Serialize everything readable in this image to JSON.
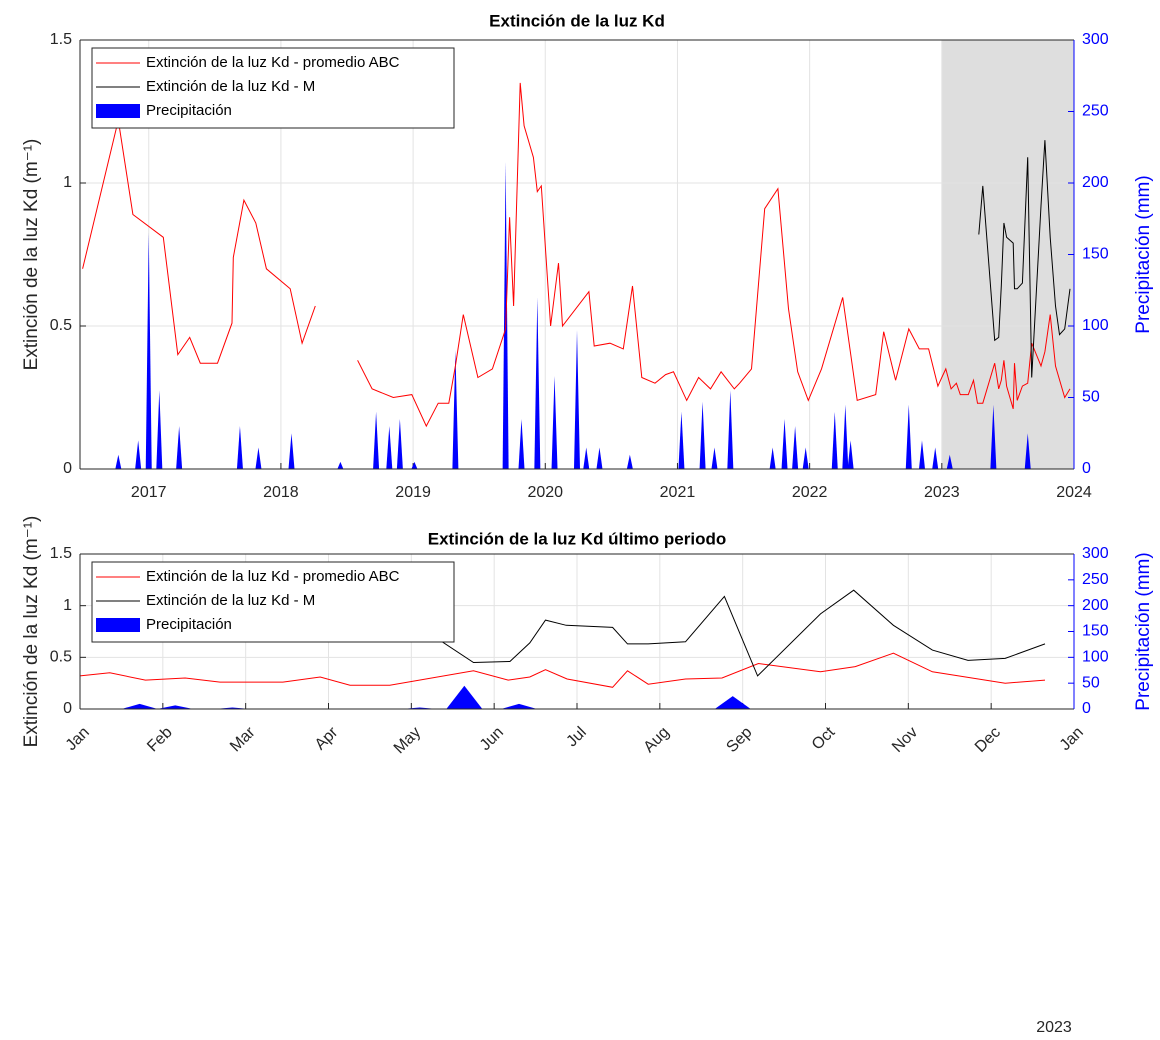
{
  "chart_data": [
    {
      "type": "line",
      "title": "Extinción de la luz Kd",
      "ylabel": "Extinción de la luz Kd (m⁻¹)",
      "y2label": "Precipitación (mm)",
      "xlim": [
        2016.48,
        2024
      ],
      "xticks": [
        2017,
        2018,
        2019,
        2020,
        2021,
        2022,
        2023,
        2024
      ],
      "ylim": [
        0,
        1.5
      ],
      "yticks": [
        0,
        0.5,
        1,
        1.5
      ],
      "y2lim": [
        0,
        300
      ],
      "y2ticks": [
        0,
        50,
        100,
        150,
        200,
        250,
        300
      ],
      "grid": true,
      "legend": "upper left",
      "highlight_x": [
        2023,
        2024
      ],
      "series": [
        {
          "name": "Extinción de la luz Kd - promedio ABC",
          "color": "#ff0000",
          "x": [
            2016.5,
            2016.77,
            2016.88,
            2017.11,
            2017.22,
            2017.31,
            2017.39,
            2017.52,
            2017.63,
            2017.64,
            2017.72,
            2017.81,
            2017.89,
            2018.07,
            2018.16,
            2018.26,
            2018.42,
            2018.58,
            2018.69,
            2018.85,
            2018.99,
            2019.1,
            2019.19,
            2019.27,
            2019.32,
            2019.38,
            2019.49,
            2019.6,
            2019.7,
            2019.73,
            2019.76,
            2019.81,
            2019.84,
            2019.91,
            2019.94,
            2019.97,
            2020.04,
            2020.1,
            2020.13,
            2020.33,
            2020.37,
            2020.49,
            2020.59,
            2020.66,
            2020.73,
            2020.83,
            2020.91,
            2020.97,
            2021.07,
            2021.16,
            2021.25,
            2021.33,
            2021.43,
            2021.47,
            2021.56,
            2021.66,
            2021.76,
            2021.84,
            2021.91,
            2021.99,
            2022.09,
            2022.25,
            2022.36,
            2022.5,
            2022.56,
            2022.65,
            2022.75,
            2022.83,
            2022.9,
            2022.97,
            2023.0,
            2023.03,
            2023.07,
            2023.11,
            2023.14,
            2023.2,
            2023.24,
            2023.27,
            2023.31,
            2023.4,
            2023.43,
            2023.45,
            2023.47,
            2023.49,
            2023.54,
            2023.55,
            2023.57,
            2023.61,
            2023.65,
            2023.68,
            2023.75,
            2023.78,
            2023.82,
            2023.86,
            2023.93,
            2023.97
          ],
          "values": [
            0.7,
            1.22,
            0.89,
            0.81,
            0.4,
            0.46,
            0.37,
            0.37,
            0.51,
            0.74,
            0.94,
            0.86,
            0.7,
            0.63,
            0.44,
            0.57,
            null,
            0.38,
            0.28,
            0.25,
            0.26,
            0.15,
            0.23,
            0.23,
            0.36,
            0.54,
            0.32,
            0.35,
            0.49,
            0.88,
            0.57,
            1.35,
            1.2,
            1.09,
            0.97,
            0.99,
            0.5,
            0.72,
            0.5,
            0.62,
            0.43,
            0.44,
            0.42,
            0.64,
            0.32,
            0.3,
            0.33,
            0.34,
            0.24,
            0.32,
            0.28,
            0.34,
            0.28,
            0.3,
            0.35,
            0.91,
            0.98,
            0.56,
            0.34,
            0.24,
            0.35,
            0.6,
            0.24,
            0.26,
            0.48,
            0.31,
            0.49,
            0.42,
            0.42,
            0.29,
            0.32,
            0.35,
            0.28,
            0.3,
            0.26,
            0.26,
            0.31,
            0.23,
            0.23,
            0.37,
            0.28,
            0.31,
            0.38,
            0.29,
            0.21,
            0.37,
            0.24,
            0.29,
            0.3,
            0.44,
            0.36,
            0.41,
            0.54,
            0.36,
            0.25,
            0.28
          ]
        },
        {
          "name": "Extinción de la luz Kd - M",
          "color": "#000000",
          "x": [
            2023.28,
            2023.31,
            2023.4,
            2023.43,
            2023.45,
            2023.47,
            2023.49,
            2023.54,
            2023.55,
            2023.57,
            2023.61,
            2023.65,
            2023.68,
            2023.75,
            2023.78,
            2023.82,
            2023.86,
            2023.89,
            2023.93,
            2023.97
          ],
          "values": [
            0.82,
            0.99,
            0.45,
            0.46,
            0.64,
            0.86,
            0.81,
            0.79,
            0.63,
            0.63,
            0.65,
            1.09,
            0.32,
            0.92,
            1.15,
            0.81,
            0.57,
            0.47,
            0.49,
            0.63
          ]
        },
        {
          "name": "Precipitación",
          "color": "#0000ff",
          "axis": "y2",
          "x": [
            2016.77,
            2016.92,
            2017.0,
            2017.08,
            2017.23,
            2017.69,
            2017.83,
            2018.08,
            2018.45,
            2018.72,
            2018.82,
            2018.9,
            2019.01,
            2019.32,
            2019.7,
            2019.82,
            2019.94,
            2020.07,
            2020.24,
            2020.31,
            2020.41,
            2020.64,
            2021.03,
            2021.19,
            2021.28,
            2021.4,
            2021.72,
            2021.81,
            2021.89,
            2021.97,
            2022.19,
            2022.27,
            2022.31,
            2022.75,
            2022.85,
            2022.95,
            2023.06,
            2023.39,
            2023.65
          ],
          "values": [
            10,
            20,
            165,
            55,
            30,
            30,
            15,
            25,
            5,
            40,
            30,
            35,
            5,
            83,
            215,
            35,
            120,
            65,
            97,
            15,
            15,
            10,
            40,
            47,
            15,
            55,
            15,
            35,
            30,
            15,
            40,
            45,
            20,
            45,
            20,
            15,
            10,
            45,
            25
          ]
        }
      ]
    },
    {
      "type": "line",
      "title": "Extinción de la luz Kd último periodo",
      "ylabel": "Extinción de la luz Kd (m⁻¹)",
      "y2label": "Precipitación (mm)",
      "xlim": [
        1,
        13
      ],
      "xticks": [
        {
          "value": 1,
          "label": "Jan"
        },
        {
          "value": 2,
          "label": "Feb"
        },
        {
          "value": 3,
          "label": "Mar"
        },
        {
          "value": 4,
          "label": "Apr"
        },
        {
          "value": 5,
          "label": "May"
        },
        {
          "value": 6,
          "label": "Jun"
        },
        {
          "value": 7,
          "label": "Jul"
        },
        {
          "value": 8,
          "label": "Aug"
        },
        {
          "value": 9,
          "label": "Sep"
        },
        {
          "value": 10,
          "label": "Oct"
        },
        {
          "value": 11,
          "label": "Nov"
        },
        {
          "value": 12,
          "label": "Dec"
        },
        {
          "value": 13,
          "label": "Jan"
        }
      ],
      "x_annotation": "2023",
      "ylim": [
        0,
        1.5
      ],
      "yticks": [
        0,
        0.5,
        1,
        1.5
      ],
      "y2lim": [
        0,
        300
      ],
      "y2ticks": [
        0,
        50,
        100,
        150,
        200,
        250,
        300
      ],
      "grid": true,
      "legend": "upper left",
      "series": [
        {
          "name": "Extinción de la luz Kd - promedio ABC",
          "color": "#ff0000",
          "x": [
            1.0,
            1.36,
            1.79,
            2.27,
            2.69,
            3.45,
            3.9,
            4.26,
            4.74,
            5.75,
            6.17,
            6.43,
            6.62,
            6.88,
            7.43,
            7.61,
            7.86,
            8.31,
            8.75,
            9.19,
            9.94,
            10.36,
            10.82,
            11.29,
            12.17,
            12.65
          ],
          "values": [
            0.32,
            0.35,
            0.28,
            0.3,
            0.26,
            0.26,
            0.31,
            0.23,
            0.23,
            0.37,
            0.28,
            0.31,
            0.38,
            0.29,
            0.21,
            0.37,
            0.24,
            0.29,
            0.3,
            0.44,
            0.36,
            0.41,
            0.54,
            0.36,
            0.25,
            0.28
          ]
        },
        {
          "name": "Extinción de la luz Kd - M",
          "color": "#000000",
          "x": [
            4.31,
            4.73,
            5.75,
            6.19,
            6.43,
            6.62,
            6.87,
            7.43,
            7.61,
            7.86,
            8.31,
            8.78,
            9.18,
            9.94,
            10.34,
            10.82,
            11.29,
            11.72,
            12.17,
            12.65
          ],
          "values": [
            0.82,
            0.99,
            0.45,
            0.46,
            0.64,
            0.86,
            0.81,
            0.79,
            0.63,
            0.63,
            0.65,
            1.09,
            0.32,
            0.92,
            1.15,
            0.81,
            0.57,
            0.47,
            0.49,
            0.63
          ]
        },
        {
          "name": "Precipitación",
          "color": "#0000ff",
          "axis": "y2",
          "x": [
            1.72,
            2.15,
            2.84,
            5.1,
            5.64,
            6.3,
            8.88,
            9.45
          ],
          "values": [
            10,
            7,
            3,
            3,
            45,
            10,
            25,
            1
          ]
        }
      ]
    }
  ]
}
